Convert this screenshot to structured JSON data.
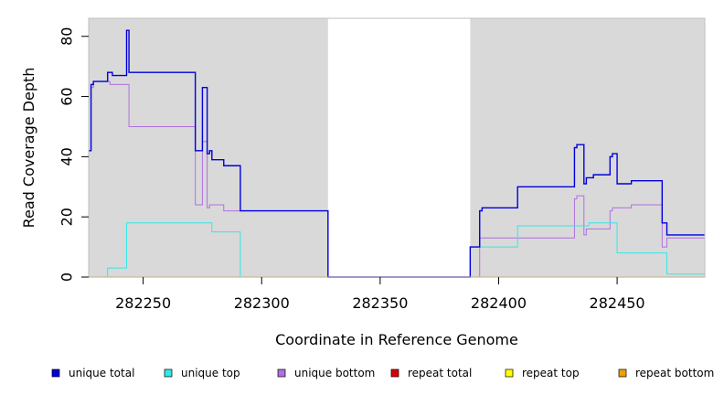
{
  "chart_data": {
    "type": "line",
    "title": "",
    "xlabel": "Coordinate in Reference Genome",
    "ylabel": "Read Coverage Depth",
    "xlim": [
      282227,
      282487
    ],
    "ylim": [
      0,
      86
    ],
    "x_ticks": [
      282250,
      282300,
      282350,
      282400,
      282450
    ],
    "x_tick_labels": [
      "282250",
      "282300",
      "282350",
      "282400",
      "282450"
    ],
    "y_ticks": [
      0,
      20,
      40,
      60,
      80
    ],
    "y_tick_labels": [
      "0",
      "20",
      "40",
      "60",
      "80"
    ],
    "shaded_regions": [
      {
        "x0": 282227,
        "x1": 282328,
        "color": "#d9d9d9"
      },
      {
        "x0": 282388,
        "x1": 282487,
        "color": "#d9d9d9"
      }
    ],
    "legend_position": "bottom",
    "series": [
      {
        "name": "unique total",
        "color": "#0000dd",
        "width": 1.4,
        "steps": [
          [
            282227,
            42
          ],
          [
            282228,
            64
          ],
          [
            282229,
            65
          ],
          [
            282235,
            68
          ],
          [
            282237,
            67
          ],
          [
            282243,
            82
          ],
          [
            282244,
            68
          ],
          [
            282272,
            42
          ],
          [
            282275,
            63
          ],
          [
            282277,
            41
          ],
          [
            282278,
            42
          ],
          [
            282279,
            39
          ],
          [
            282284,
            37
          ],
          [
            282291,
            22
          ],
          [
            282328,
            0
          ],
          [
            282388,
            10
          ],
          [
            282392,
            22
          ],
          [
            282393,
            23
          ],
          [
            282408,
            30
          ],
          [
            282432,
            43
          ],
          [
            282433,
            44
          ],
          [
            282436,
            31
          ],
          [
            282437,
            33
          ],
          [
            282440,
            34
          ],
          [
            282447,
            40
          ],
          [
            282448,
            41
          ],
          [
            282450,
            31
          ],
          [
            282456,
            32
          ],
          [
            282469,
            18
          ],
          [
            282471,
            14
          ],
          [
            282487,
            14
          ]
        ]
      },
      {
        "name": "unique top",
        "color": "#33e8e8",
        "width": 1.0,
        "steps": [
          [
            282227,
            0
          ],
          [
            282235,
            3
          ],
          [
            282243,
            18
          ],
          [
            282279,
            15
          ],
          [
            282291,
            0
          ],
          [
            282388,
            10
          ],
          [
            282397,
            10
          ],
          [
            282408,
            17
          ],
          [
            282438,
            18
          ],
          [
            282450,
            8
          ],
          [
            282471,
            1
          ],
          [
            282487,
            1
          ]
        ]
      },
      {
        "name": "unique bottom",
        "color": "#b070e0",
        "width": 1.0,
        "steps": [
          [
            282227,
            42
          ],
          [
            282228,
            63
          ],
          [
            282229,
            65
          ],
          [
            282236,
            64
          ],
          [
            282244,
            50
          ],
          [
            282272,
            24
          ],
          [
            282275,
            45
          ],
          [
            282277,
            23
          ],
          [
            282278,
            24
          ],
          [
            282284,
            22
          ],
          [
            282291,
            22
          ],
          [
            282328,
            0
          ],
          [
            282392,
            13
          ],
          [
            282432,
            26
          ],
          [
            282433,
            27
          ],
          [
            282436,
            14
          ],
          [
            282437,
            16
          ],
          [
            282447,
            22
          ],
          [
            282448,
            23
          ],
          [
            282456,
            24
          ],
          [
            282469,
            10
          ],
          [
            282471,
            13
          ],
          [
            282487,
            13
          ]
        ]
      },
      {
        "name": "repeat total",
        "color": "#dd0000",
        "width": 1.0,
        "steps": [
          [
            282227,
            0
          ],
          [
            282487,
            0
          ]
        ]
      },
      {
        "name": "repeat top",
        "color": "#ffff00",
        "width": 1.0,
        "steps": [
          [
            282227,
            0
          ],
          [
            282487,
            0
          ]
        ]
      },
      {
        "name": "repeat bottom",
        "color": "#f0a000",
        "width": 1.2,
        "steps": [
          [
            282227,
            0
          ],
          [
            282487,
            0
          ]
        ]
      }
    ]
  }
}
